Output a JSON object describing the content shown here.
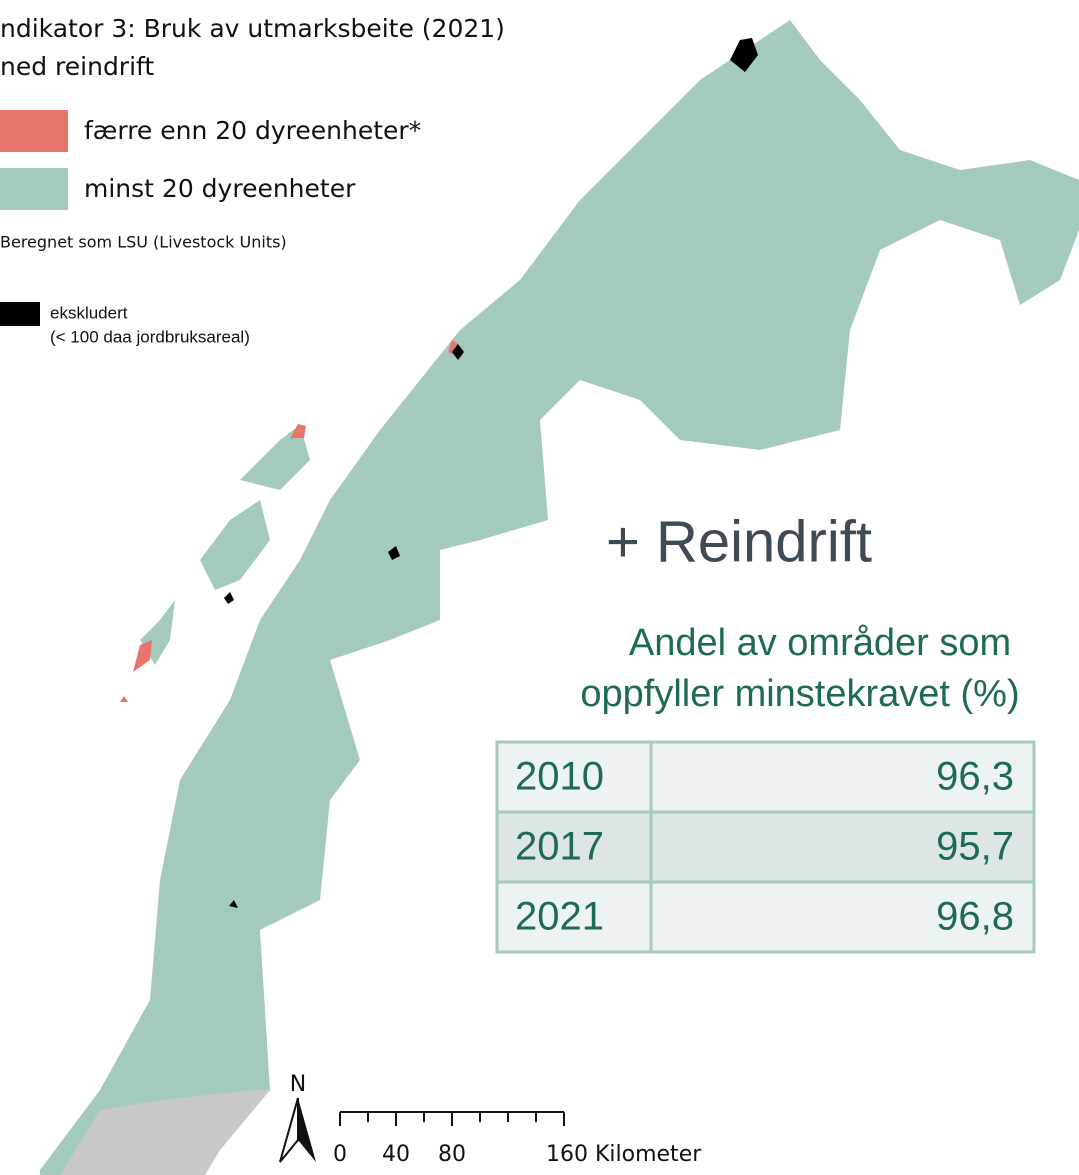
{
  "header": {
    "title_lines": [
      "ndikator 3: Bruk av utmarksbeite (2021)",
      "ned reindrift"
    ]
  },
  "legend": {
    "items": [
      {
        "label": "færre enn 20 dyreenheter*",
        "color": "#e8756c"
      },
      {
        "label": "minst 20 dyreenheter",
        "color": "#a3cabb"
      }
    ],
    "note": "Beregnet som LSU (Livestock Units)",
    "excluded": {
      "label": "ekskludert",
      "detail": "(< 100 daa jordbruksareal)",
      "color": "#000000"
    }
  },
  "panel": {
    "heading": "+ Reindrift",
    "subtitle_lines": [
      "Andel av områder som",
      "oppfyller minstekravet (%)"
    ]
  },
  "table": {
    "rows": [
      [
        "2010",
        "96,3"
      ],
      [
        "2017",
        "95,7"
      ],
      [
        "2021",
        "96,8"
      ]
    ]
  },
  "scale": {
    "north": "N",
    "labels": [
      "0",
      "40",
      "80",
      "160 Kilometer"
    ]
  }
}
